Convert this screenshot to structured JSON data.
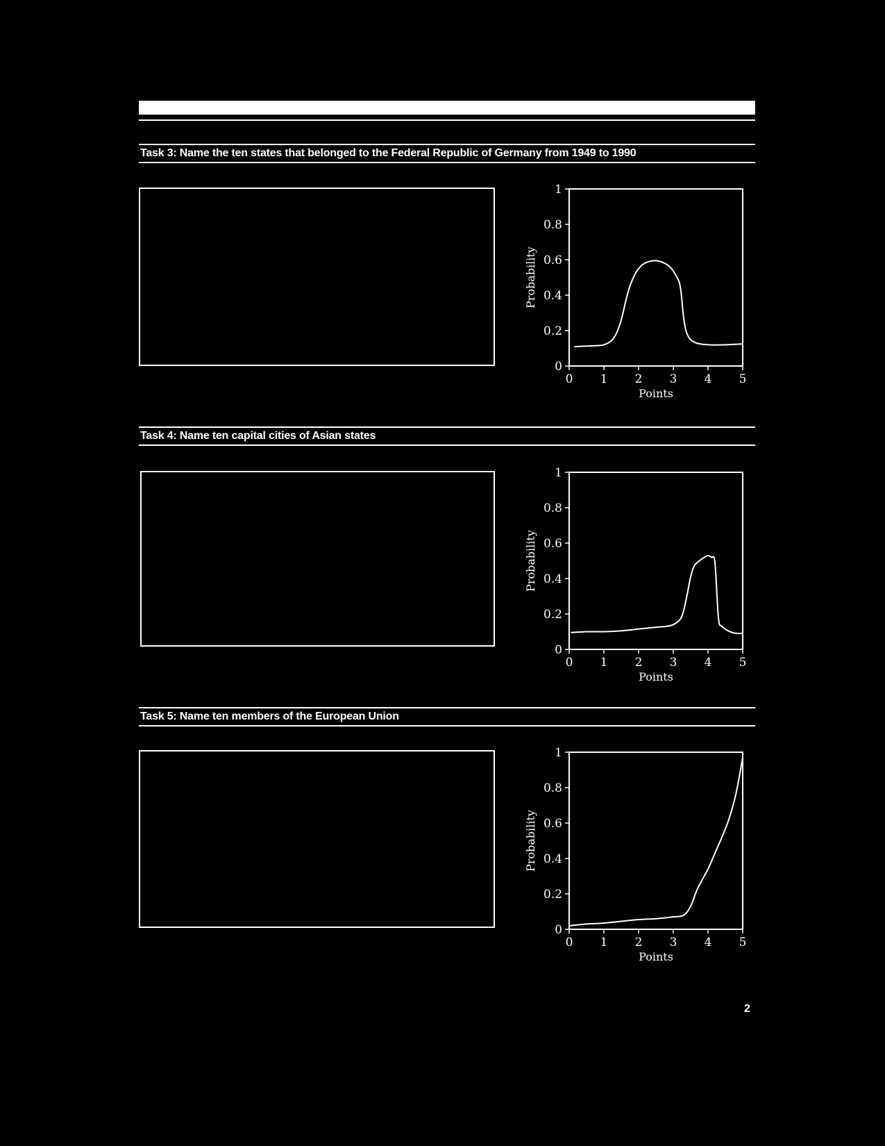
{
  "tasks": [
    {
      "title": "Task 3: Name the ten states that belonged to the Federal Republic of Germany from 1949 to 1990"
    },
    {
      "title": "Task 4: Name ten capital cities of Asian states"
    },
    {
      "title": "Task 5: Name ten members of the European Union"
    }
  ],
  "page_number": "2",
  "chart_data": [
    {
      "type": "line",
      "xlabel": "Points",
      "ylabel": "Probability",
      "xlim": [
        0,
        5
      ],
      "ylim": [
        0,
        1
      ],
      "xticks": [
        "0",
        "1",
        "2",
        "3",
        "4",
        "5"
      ],
      "yticks": [
        "0",
        "0.2",
        "0.4",
        "0.6",
        "0.8",
        "1"
      ],
      "x": [
        0.15,
        0.8,
        1.0,
        1.2,
        1.35,
        1.5,
        1.7,
        1.9,
        2.1,
        2.3,
        2.5,
        2.7,
        2.9,
        3.05,
        3.2,
        3.3,
        3.4,
        3.6,
        4.0,
        4.5,
        5.0
      ],
      "y": [
        0.11,
        0.115,
        0.12,
        0.14,
        0.18,
        0.26,
        0.42,
        0.52,
        0.57,
        0.59,
        0.595,
        0.585,
        0.56,
        0.52,
        0.45,
        0.27,
        0.18,
        0.135,
        0.12,
        0.12,
        0.125
      ]
    },
    {
      "type": "line",
      "xlabel": "Points",
      "ylabel": "Probability",
      "xlim": [
        0,
        5
      ],
      "ylim": [
        0,
        1
      ],
      "xticks": [
        "0",
        "1",
        "2",
        "3",
        "4",
        "5"
      ],
      "yticks": [
        "0",
        "0.2",
        "0.4",
        "0.6",
        "0.8",
        "1"
      ],
      "x": [
        0.05,
        0.5,
        1.0,
        1.5,
        2.0,
        2.5,
        2.8,
        3.0,
        3.2,
        3.3,
        3.4,
        3.5,
        3.6,
        3.75,
        3.9,
        4.0,
        4.1,
        4.2,
        4.3,
        4.4,
        4.7,
        5.0
      ],
      "y": [
        0.095,
        0.1,
        0.1,
        0.105,
        0.115,
        0.125,
        0.13,
        0.14,
        0.17,
        0.22,
        0.31,
        0.41,
        0.47,
        0.5,
        0.52,
        0.53,
        0.52,
        0.49,
        0.18,
        0.13,
        0.095,
        0.09
      ]
    },
    {
      "type": "line",
      "xlabel": "Points",
      "ylabel": "Probability",
      "xlim": [
        0,
        5
      ],
      "ylim": [
        0,
        1
      ],
      "xticks": [
        "0",
        "1",
        "2",
        "3",
        "4",
        "5"
      ],
      "yticks": [
        "0",
        "0.2",
        "0.4",
        "0.6",
        "0.8",
        "1"
      ],
      "x": [
        0.0,
        0.5,
        1.0,
        1.5,
        2.0,
        2.5,
        3.0,
        3.3,
        3.5,
        3.7,
        4.0,
        4.2,
        4.4,
        4.6,
        4.8,
        5.0
      ],
      "y": [
        0.02,
        0.03,
        0.035,
        0.045,
        0.055,
        0.06,
        0.07,
        0.08,
        0.13,
        0.23,
        0.34,
        0.43,
        0.52,
        0.62,
        0.76,
        0.97
      ]
    }
  ]
}
